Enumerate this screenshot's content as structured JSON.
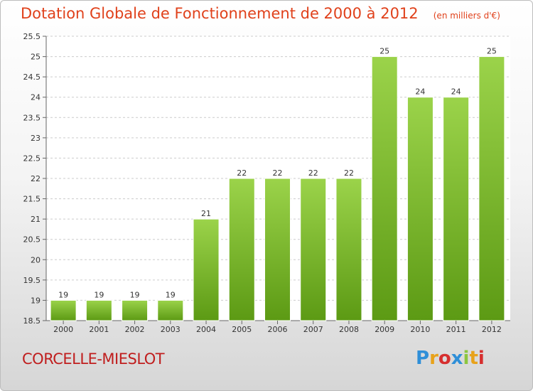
{
  "header": {
    "title": "Dotation Globale de Fonctionnement de 2000 à 2012",
    "subtitle": "(en milliers d'€)"
  },
  "footer": {
    "commune": "CORCELLE-MIESLOT",
    "brand": "Proxiti",
    "brand_colors": [
      "#2f8fd8",
      "#e8a21a",
      "#d62f2f",
      "#2f8fd8",
      "#8cc63f",
      "#e8a21a",
      "#d62f2f"
    ]
  },
  "colors": {
    "title": "#e0411b",
    "commune": "#c01e1e",
    "bar_top": "#9bd34a",
    "bar_bottom": "#5c9a14",
    "grid": "#cccccc",
    "axis_text": "#333333"
  },
  "chart_data": {
    "type": "bar",
    "title": "Dotation Globale de Fonctionnement de 2000 à 2012",
    "subtitle": "(en milliers d'€)",
    "xlabel": "",
    "ylabel": "",
    "categories": [
      "2000",
      "2001",
      "2002",
      "2003",
      "2004",
      "2005",
      "2006",
      "2007",
      "2008",
      "2009",
      "2010",
      "2011",
      "2012"
    ],
    "values": [
      19,
      19,
      19,
      19,
      21,
      22,
      22,
      22,
      22,
      25,
      24,
      24,
      25
    ],
    "data_labels": [
      "19",
      "19",
      "19",
      "19",
      "21",
      "22",
      "22",
      "22",
      "22",
      "25",
      "24",
      "24",
      "25"
    ],
    "ylim": [
      18.5,
      25.5
    ],
    "yticks": [
      "18.5",
      "19",
      "19.5",
      "20",
      "20.5",
      "21",
      "21.5",
      "22",
      "22.5",
      "23",
      "23.5",
      "24",
      "24.5",
      "25",
      "25.5"
    ],
    "grid": true,
    "legend": "none"
  }
}
